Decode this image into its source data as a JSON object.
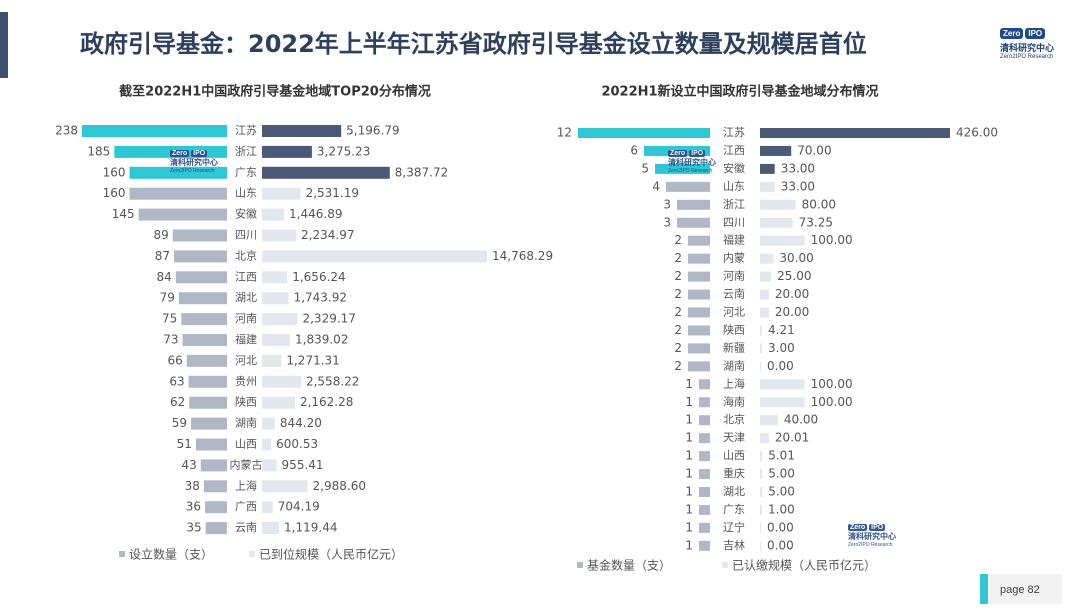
{
  "title": "政府引导基金：2022年上半年江苏省政府引导基金设立数量及规模居首位",
  "logo": {
    "badge1": "Zero",
    "badge2": "IPO",
    "cn": "清科研究中心",
    "en": "Zero2IPO Research"
  },
  "page": "page  82",
  "colors": {
    "cyan": "#2fc7d4",
    "navy": "#4a5a78",
    "grey": "#b0b8c6",
    "light": "#e3e7ee",
    "accent": "#3e4f6b"
  },
  "chart_data": [
    {
      "type": "bar",
      "title": "截至2022H1中国政府引导基金地域TOP20分布情况",
      "categories": [
        "江苏",
        "浙江",
        "广东",
        "山东",
        "安徽",
        "四川",
        "北京",
        "江西",
        "湖北",
        "河南",
        "福建",
        "河北",
        "贵州",
        "陕西",
        "湖南",
        "山西",
        "内蒙古",
        "上海",
        "广西",
        "云南"
      ],
      "series": [
        {
          "name": "设立数量（支）",
          "values": [
            238,
            185,
            160,
            160,
            145,
            89,
            87,
            84,
            79,
            75,
            73,
            66,
            63,
            62,
            59,
            51,
            43,
            38,
            36,
            35
          ],
          "labels": [
            "238",
            "185",
            "160",
            "160",
            "145",
            "89",
            "87",
            "84",
            "79",
            "75",
            "73",
            "66",
            "63",
            "62",
            "59",
            "51",
            "43",
            "38",
            "36",
            "35"
          ]
        },
        {
          "name": "已到位规模（人民币亿元）",
          "values": [
            5196.79,
            3275.23,
            8387.72,
            2531.19,
            1446.89,
            2234.97,
            14768.29,
            1656.24,
            1743.92,
            2329.17,
            1839.02,
            1271.31,
            2558.22,
            2162.28,
            844.2,
            600.53,
            955.41,
            2988.6,
            704.19,
            1119.44
          ],
          "labels": [
            "5,196.79",
            "3,275.23",
            "8,387.72",
            "2,531.19",
            "1,446.89",
            "2,234.97",
            "14,768.29",
            "1,656.24",
            "1,743.92",
            "2,329.17",
            "1,839.02",
            "1,271.31",
            "2,558.22",
            "2,162.28",
            "844.20",
            "600.53",
            "955.41",
            "2,988.60",
            "704.19",
            "1,119.44"
          ]
        }
      ],
      "legend": [
        "设立数量（支）",
        "已到位规模（人民币亿元）"
      ]
    },
    {
      "type": "bar",
      "title": "2022H1新设立中国政府引导基金地域分布情况",
      "categories": [
        "江苏",
        "江西",
        "安徽",
        "山东",
        "浙江",
        "四川",
        "福建",
        "内蒙",
        "河南",
        "云南",
        "河北",
        "陕西",
        "新疆",
        "湖南",
        "上海",
        "海南",
        "北京",
        "天津",
        "山西",
        "重庆",
        "湖北",
        "广东",
        "辽宁",
        "吉林"
      ],
      "series": [
        {
          "name": "基金数量（支）",
          "values": [
            12,
            6,
            5,
            4,
            3,
            3,
            2,
            2,
            2,
            2,
            2,
            2,
            2,
            2,
            1,
            1,
            1,
            1,
            1,
            1,
            1,
            1,
            1,
            1
          ],
          "labels": [
            "12",
            "6",
            "5",
            "4",
            "3",
            "3",
            "2",
            "2",
            "2",
            "2",
            "2",
            "2",
            "2",
            "2",
            "1",
            "1",
            "1",
            "1",
            "1",
            "1",
            "1",
            "1",
            "1",
            "1"
          ]
        },
        {
          "name": "已认缴规模（人民币亿元）",
          "values": [
            426.0,
            70.0,
            33.0,
            33.0,
            80.0,
            73.25,
            100.0,
            30.0,
            25.0,
            20.0,
            20.0,
            4.21,
            3.0,
            0.0,
            100.0,
            100.0,
            40.0,
            20.01,
            5.01,
            5.0,
            5.0,
            1.0,
            0.0,
            0.0
          ],
          "labels": [
            "426.00",
            "70.00",
            "33.00",
            "33.00",
            "80.00",
            "73.25",
            "100.00",
            "30.00",
            "25.00",
            "20.00",
            "20.00",
            "4.21",
            "3.00",
            "0.00",
            "100.00",
            "100.00",
            "40.00",
            "20.01",
            "5.01",
            "5.00",
            "5.00",
            "1.00",
            "0.00",
            "0.00"
          ]
        }
      ],
      "legend": [
        "基金数量（支）",
        "已认缴规模（人民币亿元）"
      ]
    }
  ]
}
